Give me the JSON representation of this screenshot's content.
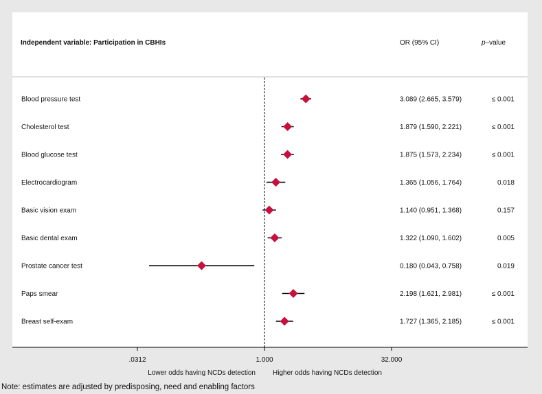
{
  "header": {
    "variable_label": "Independent variable: Participation in CBHIs",
    "or_label": "OR (95% CI)",
    "p_label_italic": "p",
    "p_label_rest": "–value"
  },
  "direction_labels": {
    "lower": "Lower odds having NCDs detection",
    "higher": "Higher odds having NCDs detection"
  },
  "note": "Note: estimates are adjusted by predisposing, need and enabling factors",
  "colors": {
    "marker": "#c8103e",
    "background_frame": "#e8e8e8",
    "plot_background": "#ffffff",
    "ci_line": "#000000",
    "reference_line": "#000000"
  },
  "chart_data": {
    "type": "forest",
    "x_scale": "log2",
    "xlim": [
      0.0156,
      70
    ],
    "x_ticks": [
      {
        "value": 0.03125,
        "label": ".0312"
      },
      {
        "value": 1,
        "label": "1.000"
      },
      {
        "value": 32,
        "label": "32.000"
      }
    ],
    "reference_value": 1,
    "reference_line_style": "dashed",
    "rows": [
      {
        "label": "Blood pressure test",
        "or": 3.089,
        "lower": 2.665,
        "upper": 3.579,
        "ci_text": "3.089 (2.665, 3.579)",
        "p_text": "≤ 0.001"
      },
      {
        "label": "Cholesterol test",
        "or": 1.879,
        "lower": 1.59,
        "upper": 2.221,
        "ci_text": "1.879 (1.590, 2.221)",
        "p_text": "≤ 0.001"
      },
      {
        "label": "Blood glucose test",
        "or": 1.875,
        "lower": 1.573,
        "upper": 2.234,
        "ci_text": "1.875 (1.573, 2.234)",
        "p_text": "≤ 0.001"
      },
      {
        "label": "Electrocardiogram",
        "or": 1.365,
        "lower": 1.056,
        "upper": 1.764,
        "ci_text": "1.365 (1.056, 1.764)",
        "p_text": "0.018"
      },
      {
        "label": "Basic vision exam",
        "or": 1.14,
        "lower": 0.951,
        "upper": 1.368,
        "ci_text": "1.140 (0.951, 1.368)",
        "p_text": "0.157"
      },
      {
        "label": "Basic dental exam",
        "or": 1.322,
        "lower": 1.09,
        "upper": 1.602,
        "ci_text": "1.322 (1.090, 1.602)",
        "p_text": "0.005"
      },
      {
        "label": "Prostate cancer test",
        "or": 0.18,
        "lower": 0.043,
        "upper": 0.758,
        "ci_text": "0.180 (0.043, 0.758)",
        "p_text": "0.019"
      },
      {
        "label": "Paps smear",
        "or": 2.198,
        "lower": 1.621,
        "upper": 2.981,
        "ci_text": "2.198 (1.621, 2.981)",
        "p_text": "≤ 0.001"
      },
      {
        "label": "Breast self-exam",
        "or": 1.727,
        "lower": 1.365,
        "upper": 2.185,
        "ci_text": "1.727 (1.365, 2.185)",
        "p_text": "≤ 0.001"
      }
    ]
  }
}
